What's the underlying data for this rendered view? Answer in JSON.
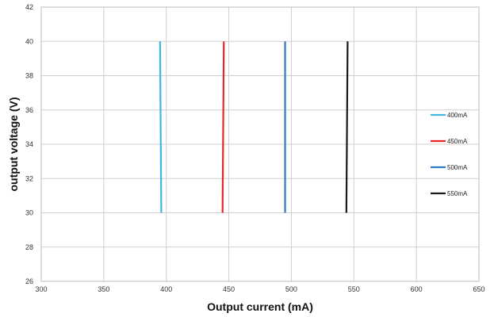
{
  "chart_data": {
    "type": "line",
    "title": "",
    "xlabel": "Output current (mA)",
    "ylabel": "output voltage (V)",
    "xlim": [
      300,
      650
    ],
    "ylim": [
      26,
      42
    ],
    "xticks": [
      300,
      350,
      400,
      450,
      500,
      550,
      600,
      650
    ],
    "yticks": [
      26,
      28,
      30,
      32,
      34,
      36,
      38,
      40,
      42
    ],
    "grid": true,
    "legend_position": "right",
    "series": [
      {
        "name": "400mA",
        "color": "#3fb6e3",
        "x": [
          396,
          395
        ],
        "y": [
          30,
          40
        ]
      },
      {
        "name": "450mA",
        "color": "#e8262a",
        "x": [
          445,
          446
        ],
        "y": [
          30,
          40
        ]
      },
      {
        "name": "500mA",
        "color": "#2f78c2",
        "x": [
          495,
          495
        ],
        "y": [
          30,
          40
        ]
      },
      {
        "name": "550mA",
        "color": "#1a1a1a",
        "x": [
          544,
          545
        ],
        "y": [
          30,
          40
        ]
      }
    ]
  }
}
